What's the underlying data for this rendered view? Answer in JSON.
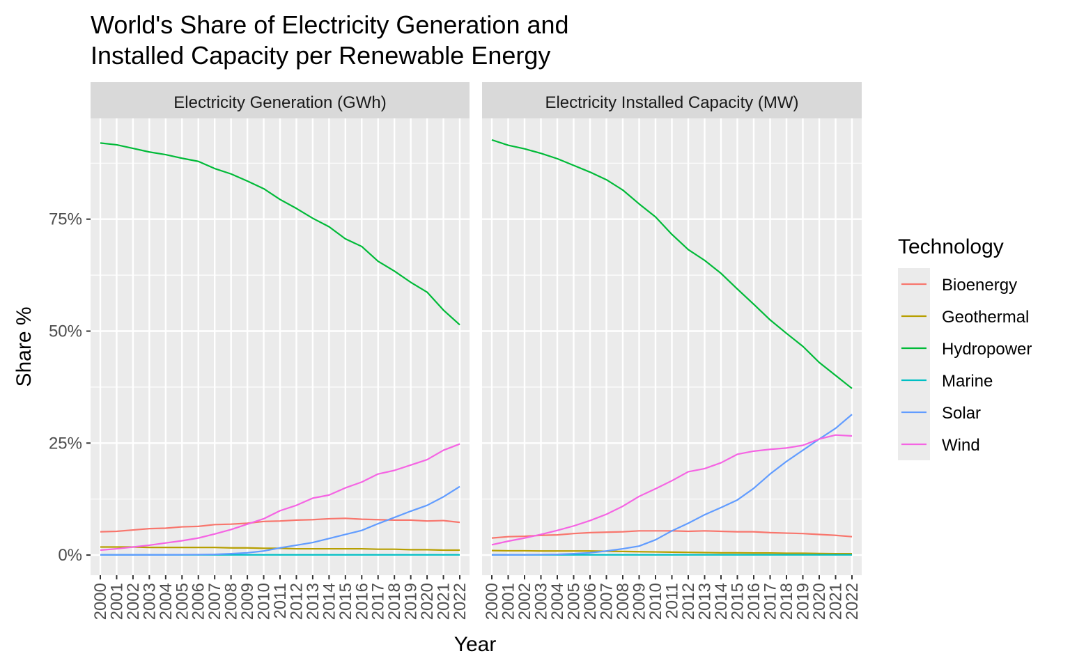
{
  "chart_data": {
    "type": "line",
    "title_line1": "World's Share of Electricity Generation and",
    "title_line2": "Installed Capacity per Renewable Energy",
    "xlabel": "Year",
    "ylabel": "Share %",
    "y_ticks": [
      0,
      25,
      50,
      75
    ],
    "y_tick_labels": [
      "0%",
      "25%",
      "50%",
      "75%"
    ],
    "ylim": [
      -4.5,
      97.5
    ],
    "grid": true,
    "legend_position": "right",
    "legend_title": "Technology",
    "x": [
      "2000",
      "2001",
      "2002",
      "2003",
      "2004",
      "2005",
      "2006",
      "2007",
      "2008",
      "2009",
      "2010",
      "2011",
      "2012",
      "2013",
      "2014",
      "2015",
      "2016",
      "2017",
      "2018",
      "2019",
      "2020",
      "2021",
      "2022"
    ],
    "series_colors": {
      "Bioenergy": "#F8766D",
      "Geothermal": "#B79F00",
      "Hydropower": "#00BA38",
      "Marine": "#00BFC4",
      "Solar": "#619CFF",
      "Wind": "#F564E3"
    },
    "panels": [
      {
        "strip_label": "Electricity Generation (GWh)",
        "series": [
          {
            "name": "Bioenergy",
            "values": [
              5.2,
              5.3,
              5.6,
              5.9,
              6.0,
              6.3,
              6.4,
              6.8,
              6.9,
              7.1,
              7.5,
              7.6,
              7.8,
              7.9,
              8.1,
              8.2,
              8.0,
              7.9,
              7.8,
              7.8,
              7.6,
              7.7,
              7.3
            ]
          },
          {
            "name": "Geothermal",
            "values": [
              1.8,
              1.8,
              1.8,
              1.7,
              1.7,
              1.7,
              1.7,
              1.7,
              1.6,
              1.6,
              1.5,
              1.5,
              1.4,
              1.4,
              1.4,
              1.4,
              1.4,
              1.3,
              1.3,
              1.2,
              1.2,
              1.1,
              1.1
            ]
          },
          {
            "name": "Hydropower",
            "values": [
              92.0,
              91.6,
              90.8,
              90.0,
              89.4,
              88.6,
              87.9,
              86.3,
              85.1,
              83.5,
              81.8,
              79.4,
              77.4,
              75.2,
              73.3,
              70.6,
              68.9,
              65.6,
              63.4,
              60.9,
              58.7,
              54.7,
              51.4
            ]
          },
          {
            "name": "Marine",
            "values": [
              0.05,
              0.05,
              0.05,
              0.05,
              0.05,
              0.05,
              0.05,
              0.05,
              0.05,
              0.05,
              0.05,
              0.05,
              0.05,
              0.05,
              0.05,
              0.05,
              0.05,
              0.05,
              0.05,
              0.05,
              0.05,
              0.05,
              0.05
            ]
          },
          {
            "name": "Solar",
            "values": [
              0.05,
              0.05,
              0.05,
              0.05,
              0.05,
              0.08,
              0.1,
              0.15,
              0.3,
              0.5,
              0.9,
              1.6,
              2.2,
              2.8,
              3.7,
              4.6,
              5.5,
              7.0,
              8.4,
              9.8,
              11.1,
              13.0,
              15.3
            ]
          },
          {
            "name": "Wind",
            "values": [
              1.1,
              1.4,
              1.8,
              2.2,
              2.7,
              3.2,
              3.8,
              4.7,
              5.7,
              6.9,
              8.1,
              9.9,
              11.1,
              12.7,
              13.4,
              15.0,
              16.3,
              18.1,
              18.9,
              20.1,
              21.3,
              23.4,
              24.8
            ]
          }
        ]
      },
      {
        "strip_label": "Electricity Installed Capacity (MW)",
        "series": [
          {
            "name": "Bioenergy",
            "values": [
              3.8,
              4.1,
              4.2,
              4.4,
              4.5,
              4.8,
              5.0,
              5.1,
              5.2,
              5.4,
              5.4,
              5.4,
              5.3,
              5.4,
              5.3,
              5.2,
              5.2,
              5.0,
              4.9,
              4.8,
              4.6,
              4.4,
              4.1
            ]
          },
          {
            "name": "Geothermal",
            "values": [
              1.0,
              0.95,
              0.95,
              0.9,
              0.9,
              0.9,
              0.9,
              0.85,
              0.8,
              0.75,
              0.7,
              0.65,
              0.6,
              0.55,
              0.5,
              0.5,
              0.45,
              0.45,
              0.4,
              0.4,
              0.35,
              0.3,
              0.3
            ]
          },
          {
            "name": "Hydropower",
            "values": [
              92.7,
              91.5,
              90.7,
              89.7,
              88.5,
              87.0,
              85.5,
              83.8,
              81.5,
              78.4,
              75.5,
              71.6,
              68.2,
              65.8,
              62.9,
              59.4,
              56.0,
              52.5,
              49.5,
              46.6,
              43.0,
              40.1,
              37.2
            ]
          },
          {
            "name": "Marine",
            "values": [
              0.05,
              0.05,
              0.05,
              0.05,
              0.05,
              0.05,
              0.05,
              0.05,
              0.05,
              0.05,
              0.05,
              0.05,
              0.05,
              0.05,
              0.05,
              0.05,
              0.05,
              0.05,
              0.05,
              0.05,
              0.05,
              0.05,
              0.05
            ]
          },
          {
            "name": "Solar",
            "values": [
              0.05,
              0.05,
              0.05,
              0.1,
              0.15,
              0.3,
              0.5,
              0.9,
              1.4,
              2.0,
              3.4,
              5.4,
              7.1,
              9.0,
              10.6,
              12.3,
              14.9,
              18.1,
              20.9,
              23.4,
              25.9,
              28.3,
              31.4
            ]
          },
          {
            "name": "Wind",
            "values": [
              2.3,
              3.1,
              3.8,
              4.6,
              5.5,
              6.5,
              7.7,
              9.1,
              10.9,
              13.1,
              14.8,
              16.6,
              18.6,
              19.3,
              20.6,
              22.5,
              23.2,
              23.6,
              23.9,
              24.5,
              25.9,
              26.8,
              26.6
            ]
          }
        ]
      }
    ]
  }
}
